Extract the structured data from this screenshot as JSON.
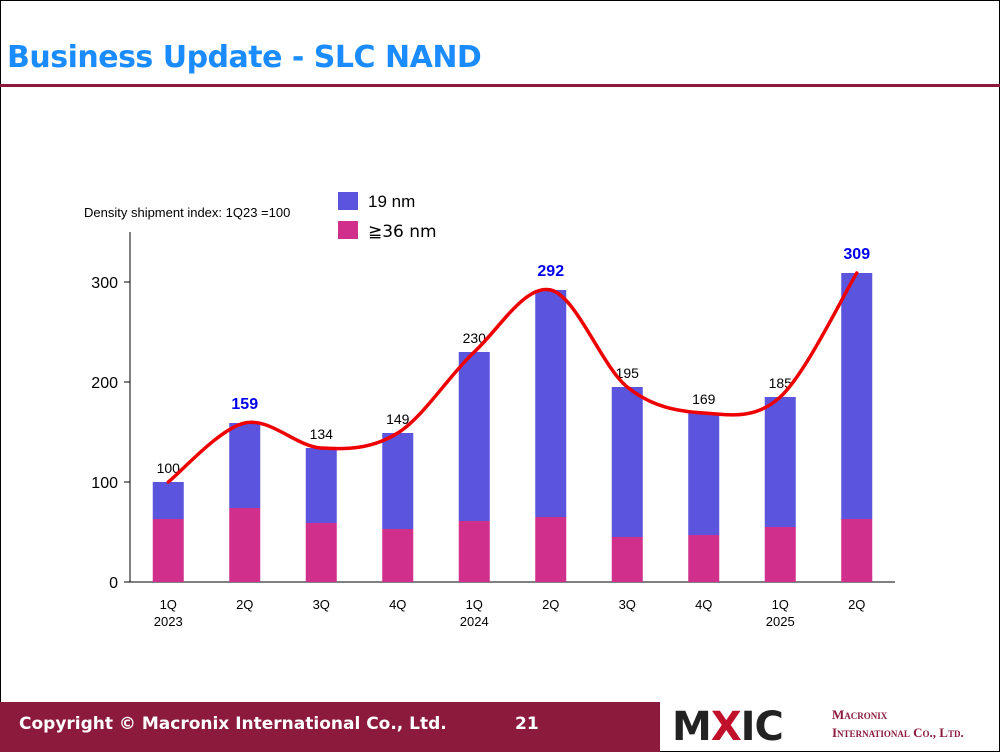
{
  "slide": {
    "title": "Business Update - SLC NAND",
    "copyright": "Copyright © Macronix International Co., Ltd.",
    "page_number": "21",
    "logo": {
      "text_left": "M",
      "text_x": "X",
      "text_right": "IC"
    },
    "company_line1": "Macronix",
    "company_line2": "International Co., Ltd."
  },
  "colors": {
    "title": "#1a8cff",
    "band": "#8b1a3d",
    "nm19": "#5b55de",
    "nm36": "#d12f8c",
    "trend": "#ee0000",
    "highlight_label": "#0000ee"
  },
  "chart_data": {
    "type": "bar",
    "stacked": true,
    "annotation": "Density shipment index: 1Q23 =100",
    "categories": [
      "1Q",
      "2Q",
      "3Q",
      "4Q",
      "1Q",
      "2Q",
      "3Q",
      "4Q",
      "1Q",
      "2Q"
    ],
    "category_years": [
      "2023",
      "",
      "",
      "",
      "2024",
      "",
      "",
      "",
      "2025",
      ""
    ],
    "series": [
      {
        "name": "≧36 nm",
        "values": [
          63,
          74,
          59,
          53,
          61,
          65,
          45,
          47,
          55,
          63
        ]
      },
      {
        "name": "19 nm",
        "values": [
          37,
          85,
          75,
          96,
          169,
          227,
          150,
          122,
          130,
          246
        ]
      }
    ],
    "totals": [
      100,
      159,
      134,
      149,
      230,
      292,
      195,
      169,
      185,
      309
    ],
    "total_labels": [
      "100",
      "159",
      "134",
      "149",
      "230",
      "292",
      "195",
      "169",
      "185",
      "309"
    ],
    "highlighted_totals": [
      1,
      5,
      9
    ],
    "trend_line": true,
    "ylim": [
      0,
      350
    ],
    "yticks": [
      0,
      100,
      200,
      300
    ],
    "ytick_labels": [
      "0",
      "100",
      "200",
      "300"
    ],
    "legend_position": "top"
  }
}
